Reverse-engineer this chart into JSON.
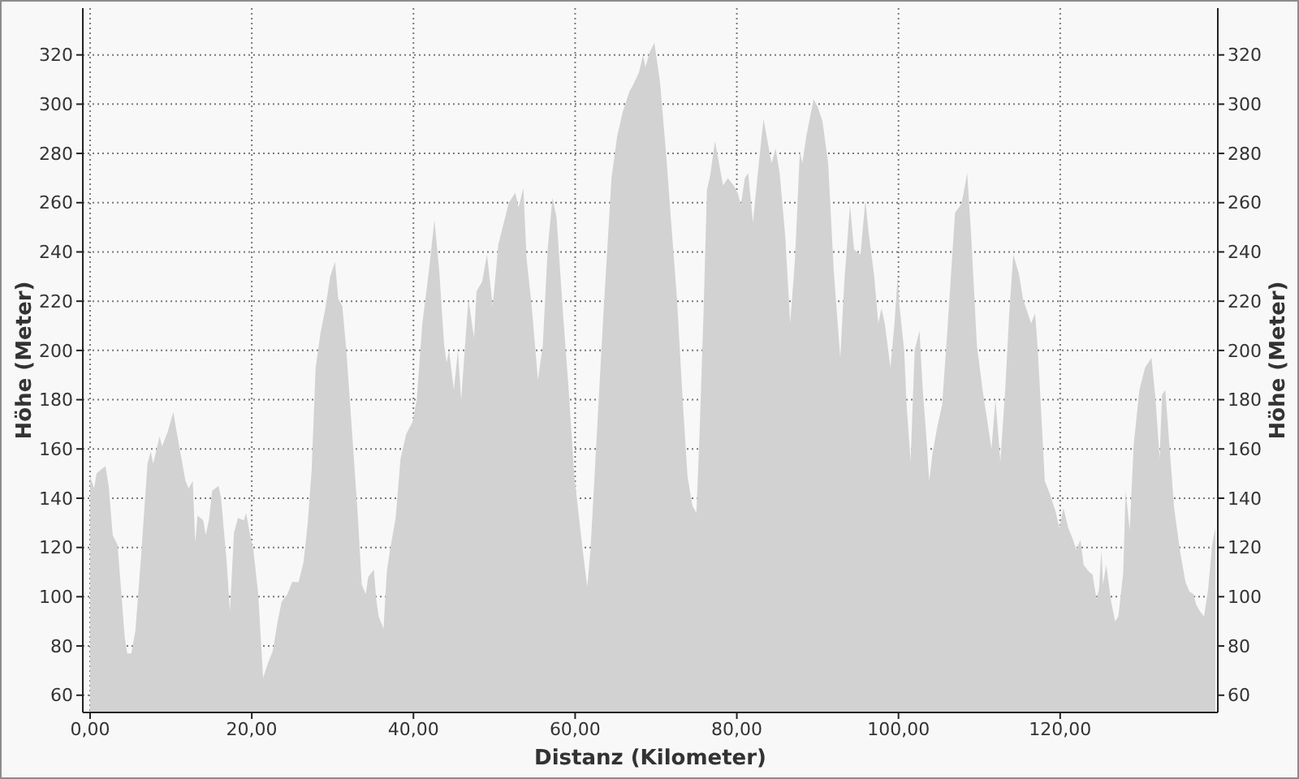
{
  "chart_data": {
    "type": "area",
    "xlabel": "Distanz (Kilometer)",
    "ylabel": "Höhe (Meter)",
    "y2label": "Höhe (Meter)",
    "xlim": [
      -0.9,
      139.5
    ],
    "ylim": [
      53,
      339
    ],
    "y2lim": [
      53,
      339
    ],
    "xticks": [
      {
        "value": 0,
        "label": "0,00"
      },
      {
        "value": 20,
        "label": "20,00"
      },
      {
        "value": 40,
        "label": "40,00"
      },
      {
        "value": 60,
        "label": "60,00"
      },
      {
        "value": 80,
        "label": "80,00"
      },
      {
        "value": 100,
        "label": "100,00"
      },
      {
        "value": 120,
        "label": "120,00"
      }
    ],
    "yticks": [
      60,
      80,
      100,
      120,
      140,
      160,
      180,
      200,
      220,
      240,
      260,
      280,
      300,
      320
    ],
    "y2ticks": [
      60,
      80,
      100,
      120,
      140,
      160,
      180,
      200,
      220,
      240,
      260,
      280,
      300,
      320
    ],
    "grid": true,
    "color": "#d2d2d2",
    "x": [
      0,
      0.5,
      0.8,
      1.5,
      1.9,
      2.3,
      2.8,
      3.4,
      4.3,
      4.6,
      5.1,
      5.6,
      6.3,
      7.1,
      7.5,
      7.8,
      8.6,
      8.9,
      9.6,
      10.3,
      10.6,
      11.8,
      12.2,
      12.7,
      13.0,
      13.3,
      14.0,
      14.3,
      14.7,
      15.1,
      15.9,
      16.2,
      16.9,
      17.3,
      17.8,
      18.3,
      19.0,
      19.3,
      19.8,
      20.2,
      20.8,
      21.4,
      22.0,
      22.6,
      23.2,
      23.7,
      24.4,
      25.0,
      25.8,
      26.4,
      26.9,
      27.4,
      27.9,
      28.5,
      29.1,
      29.7,
      30.3,
      30.7,
      31.2,
      31.7,
      32.4,
      33.1,
      33.6,
      34.1,
      34.4,
      35.1,
      35.4,
      35.7,
      36.3,
      36.7,
      37.1,
      37.8,
      38.4,
      39.1,
      39.9,
      40.4,
      41.1,
      41.9,
      42.6,
      43.2,
      43.8,
      44.1,
      44.4,
      45.0,
      45.5,
      45.9,
      46.8,
      47.5,
      47.8,
      48.5,
      49.1,
      49.8,
      50.5,
      51.8,
      52.6,
      53.0,
      53.6,
      54.0,
      54.6,
      55.4,
      56.0,
      56.6,
      57.2,
      57.7,
      58.5,
      59.2,
      59.9,
      60.9,
      61.5,
      61.9,
      62.7,
      63.5,
      64.5,
      65.2,
      65.9,
      66.7,
      67.2,
      67.9,
      68.4,
      68.7,
      69.2,
      69.8,
      70.5,
      71.3,
      71.9,
      72.6,
      73.3,
      73.9,
      74.5,
      75.0,
      75.4,
      75.9,
      76.3,
      76.7,
      77.3,
      77.8,
      78.3,
      78.9,
      79.6,
      80.1,
      80.5,
      81.0,
      81.4,
      82.0,
      82.6,
      83.3,
      83.8,
      84.3,
      84.8,
      85.3,
      86.0,
      86.6,
      87.2,
      87.8,
      88.1,
      88.6,
      89.5,
      90.0,
      90.6,
      91.3,
      92.0,
      92.8,
      93.3,
      94.0,
      94.5,
      95.3,
      95.9,
      96.3,
      97.0,
      97.5,
      97.9,
      98.3,
      99.0,
      99.5,
      99.9,
      100.1,
      100.7,
      101.0,
      101.5,
      102.0,
      102.6,
      103.0,
      103.4,
      103.8,
      104.2,
      104.8,
      105.4,
      106.0,
      106.7,
      107.0,
      107.7,
      108.0,
      108.5,
      109.0,
      109.7,
      110.4,
      111.0,
      111.5,
      112.0,
      112.6,
      113.2,
      113.7,
      114.2,
      114.9,
      115.4,
      116.0,
      116.4,
      116.9,
      117.2,
      117.6,
      118.1,
      118.7,
      119.4,
      119.9,
      120.4,
      121.0,
      121.6,
      122.0,
      122.5,
      122.9,
      123.6,
      124.0,
      124.5,
      124.8,
      125.1,
      125.3,
      125.7,
      126.3,
      126.8,
      127.2,
      127.8,
      128.1,
      128.6,
      129.1,
      129.8,
      130.5,
      131.3,
      131.8,
      132.3,
      132.6,
      133.0,
      133.5,
      134.1,
      134.8,
      135.5,
      136.0,
      136.5,
      136.8,
      137.3,
      137.8,
      138.3,
      138.8,
      139.2
    ],
    "values": [
      149,
      144,
      150,
      152,
      153,
      145,
      125,
      121,
      83,
      77,
      77,
      86,
      116,
      154,
      159,
      154,
      165,
      161,
      167,
      175,
      169,
      147,
      144,
      147,
      122,
      133,
      131,
      125,
      131,
      143,
      145,
      140,
      114,
      94,
      126,
      132,
      131,
      134,
      125,
      119,
      101,
      67,
      73,
      78,
      90,
      98,
      101,
      106,
      106,
      114,
      129,
      151,
      193,
      207,
      217,
      230,
      236,
      221,
      218,
      200,
      167,
      134,
      105,
      101,
      108,
      111,
      99,
      92,
      87,
      110,
      119,
      132,
      156,
      166,
      171,
      180,
      211,
      232,
      253,
      232,
      202,
      195,
      200,
      184,
      200,
      180,
      221,
      205,
      224,
      228,
      239,
      218,
      243,
      260,
      264,
      258,
      266,
      237,
      219,
      188,
      202,
      241,
      262,
      254,
      215,
      184,
      149,
      120,
      104,
      119,
      167,
      215,
      270,
      287,
      297,
      305,
      308,
      313,
      320,
      315,
      321,
      325,
      309,
      278,
      251,
      221,
      180,
      149,
      137,
      134,
      167,
      217,
      265,
      271,
      285,
      276,
      267,
      270,
      267,
      264,
      259,
      270,
      272,
      252,
      272,
      294,
      285,
      276,
      282,
      272,
      246,
      211,
      237,
      281,
      276,
      287,
      302,
      299,
      293,
      276,
      232,
      197,
      228,
      259,
      241,
      239,
      261,
      248,
      230,
      211,
      217,
      211,
      193,
      211,
      230,
      219,
      200,
      178,
      155,
      200,
      208,
      184,
      167,
      147,
      158,
      169,
      178,
      206,
      241,
      256,
      259,
      263,
      272,
      246,
      202,
      184,
      171,
      160,
      180,
      155,
      184,
      215,
      239,
      231,
      221,
      215,
      211,
      215,
      202,
      178,
      147,
      142,
      135,
      128,
      136,
      128,
      123,
      119,
      123,
      113,
      110,
      109,
      99,
      103,
      119,
      105,
      113,
      98,
      90,
      92,
      110,
      143,
      127,
      162,
      184,
      193,
      197,
      180,
      156,
      182,
      184,
      162,
      136,
      119,
      106,
      102,
      101,
      97,
      94,
      92,
      103,
      121,
      128
    ]
  }
}
